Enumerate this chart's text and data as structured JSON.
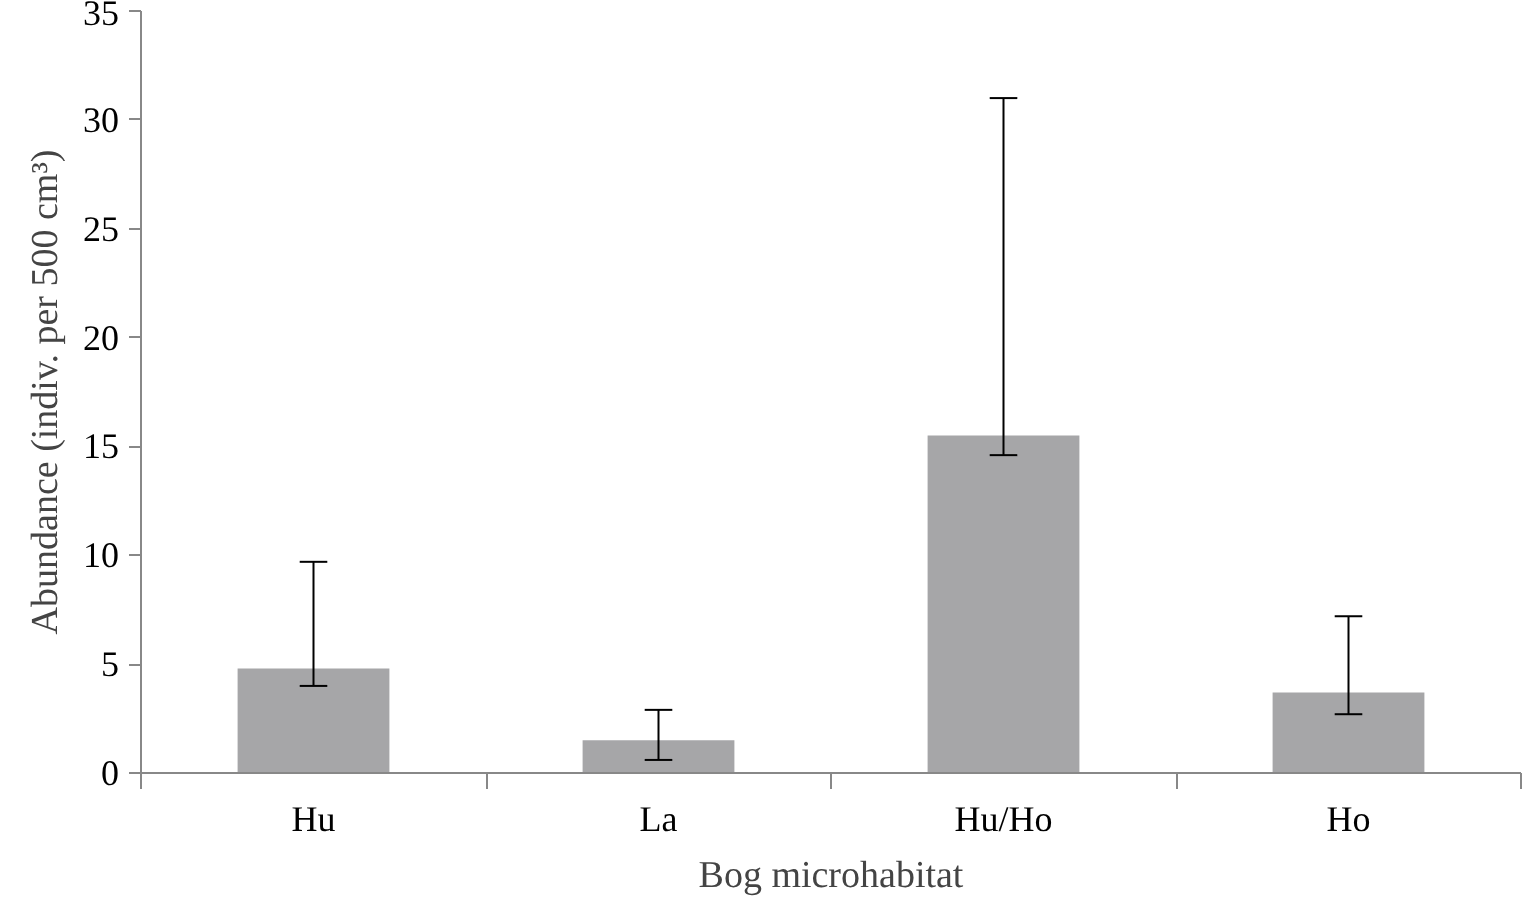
{
  "chart_data": {
    "type": "bar",
    "xlabel": "Bog microhabitat",
    "ylabel": "Abundance (indiv. per 500 cm³)",
    "categories": [
      "Hu",
      "La",
      "Hu/Ho",
      "Ho"
    ],
    "values": [
      4.8,
      1.5,
      15.5,
      3.7
    ],
    "errors": [
      [
        4.0,
        9.7
      ],
      [
        0.6,
        2.9
      ],
      [
        14.6,
        31.0
      ],
      [
        2.7,
        7.2
      ]
    ],
    "color": "#a6a6a8",
    "ylim": [
      0,
      35
    ],
    "yticks": [
      0,
      5,
      10,
      15,
      20,
      25,
      30,
      35
    ],
    "grid": false
  }
}
